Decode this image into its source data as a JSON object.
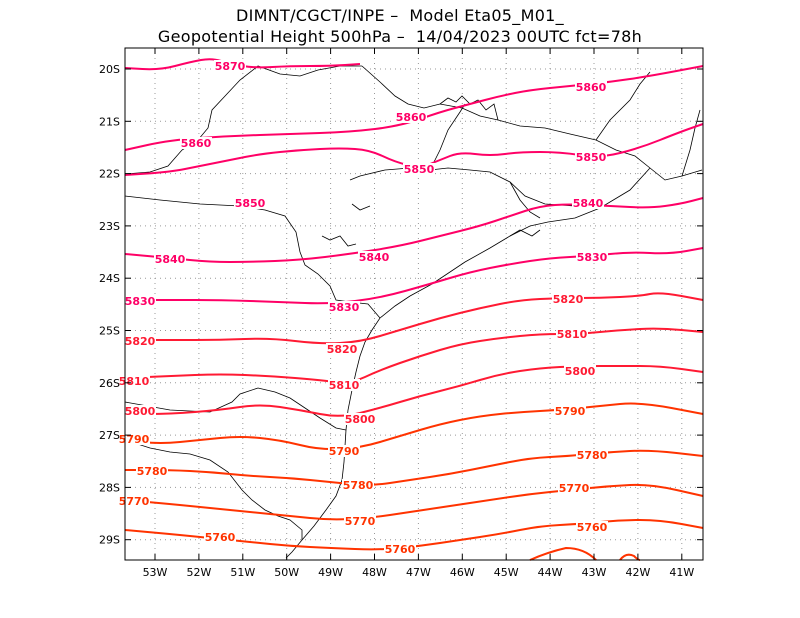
{
  "title": {
    "line1": "DIMNT/CGCT/INPE –  Model Eta05_M01_",
    "line2": "Geopotential Height 500hPa –  14/04/2023 00UTC fct=78h"
  },
  "axes": {
    "lat_labels": [
      "20S",
      "21S",
      "22S",
      "23S",
      "24S",
      "25S",
      "26S",
      "27S",
      "28S",
      "29S"
    ],
    "lon_labels": [
      "53W",
      "52W",
      "51W",
      "50W",
      "49W",
      "48W",
      "47W",
      "46W",
      "45W",
      "44W",
      "43W",
      "42W",
      "41W"
    ]
  },
  "colors": {
    "high": "#ff0066",
    "mid": "#ff1a33",
    "low": "#ff3300",
    "coast": "#000000",
    "grid": "#999999"
  },
  "contours": [
    {
      "value": 5870,
      "label": "5870"
    },
    {
      "value": 5860,
      "label": "5860"
    },
    {
      "value": 5850,
      "label": "5850"
    },
    {
      "value": 5840,
      "label": "5840"
    },
    {
      "value": 5830,
      "label": "5830"
    },
    {
      "value": 5820,
      "label": "5820"
    },
    {
      "value": 5810,
      "label": "5810"
    },
    {
      "value": 5800,
      "label": "5800"
    },
    {
      "value": 5790,
      "label": "5790"
    },
    {
      "value": 5780,
      "label": "5780"
    },
    {
      "value": 5770,
      "label": "5770"
    },
    {
      "value": 5760,
      "label": "5760"
    }
  ]
}
